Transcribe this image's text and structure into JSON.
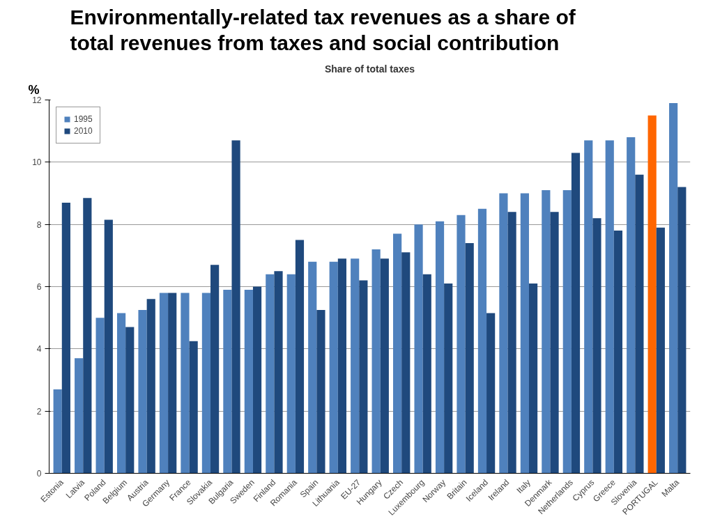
{
  "chart_data": {
    "type": "bar",
    "title": "Environmentally-related tax revenues as a share of total revenues from taxes and social contribution",
    "subtitle": "Share of total taxes",
    "ylabel": "%",
    "categories": [
      "Estonia",
      "Latvia",
      "Poland",
      "Belgium",
      "Austria",
      "Germany",
      "France",
      "Slovakia",
      "Bulgaria",
      "Sweden",
      "Finland",
      "Romania",
      "Spain",
      "Lithuania",
      "EU-27",
      "Hungary",
      "Czech",
      "Luxembourg",
      "Norway",
      "Britain",
      "Iceland",
      "Ireland",
      "Italy",
      "Denmark",
      "Netherlands",
      "Cyprus",
      "Greece",
      "Slovenia",
      "PORTUGAL",
      "Malta"
    ],
    "series": [
      {
        "name": "1995",
        "color": "#4f81bd",
        "colors": [
          "#4f81bd",
          "#4f81bd",
          "#4f81bd",
          "#4f81bd",
          "#4f81bd",
          "#4f81bd",
          "#4f81bd",
          "#4f81bd",
          "#4f81bd",
          "#4f81bd",
          "#4f81bd",
          "#4f81bd",
          "#4f81bd",
          "#4f81bd",
          "#4f81bd",
          "#4f81bd",
          "#4f81bd",
          "#4f81bd",
          "#4f81bd",
          "#4f81bd",
          "#4f81bd",
          "#4f81bd",
          "#4f81bd",
          "#4f81bd",
          "#4f81bd",
          "#4f81bd",
          "#4f81bd",
          "#4f81bd",
          "#ff6600",
          "#4f81bd"
        ],
        "values": [
          2.7,
          3.7,
          5.0,
          5.15,
          5.25,
          5.8,
          5.8,
          5.8,
          5.9,
          5.9,
          6.4,
          6.4,
          6.8,
          6.8,
          6.9,
          7.2,
          7.7,
          8.0,
          8.1,
          8.3,
          8.5,
          9.0,
          9.0,
          9.1,
          9.1,
          10.7,
          10.7,
          10.8,
          11.5,
          11.9
        ]
      },
      {
        "name": "2010",
        "color": "#1f497d",
        "values": [
          8.7,
          8.85,
          8.15,
          4.7,
          5.6,
          5.8,
          4.25,
          6.7,
          10.7,
          6.0,
          6.5,
          7.5,
          5.25,
          6.9,
          6.2,
          6.9,
          7.1,
          6.4,
          6.1,
          7.4,
          5.15,
          8.4,
          6.1,
          8.4,
          10.3,
          8.2,
          7.8,
          9.6,
          7.9,
          9.2
        ]
      }
    ],
    "ylim": [
      0,
      12
    ],
    "yticks": [
      0,
      2,
      4,
      6,
      8,
      10,
      12
    ],
    "grid": "y",
    "legend": "top left"
  }
}
